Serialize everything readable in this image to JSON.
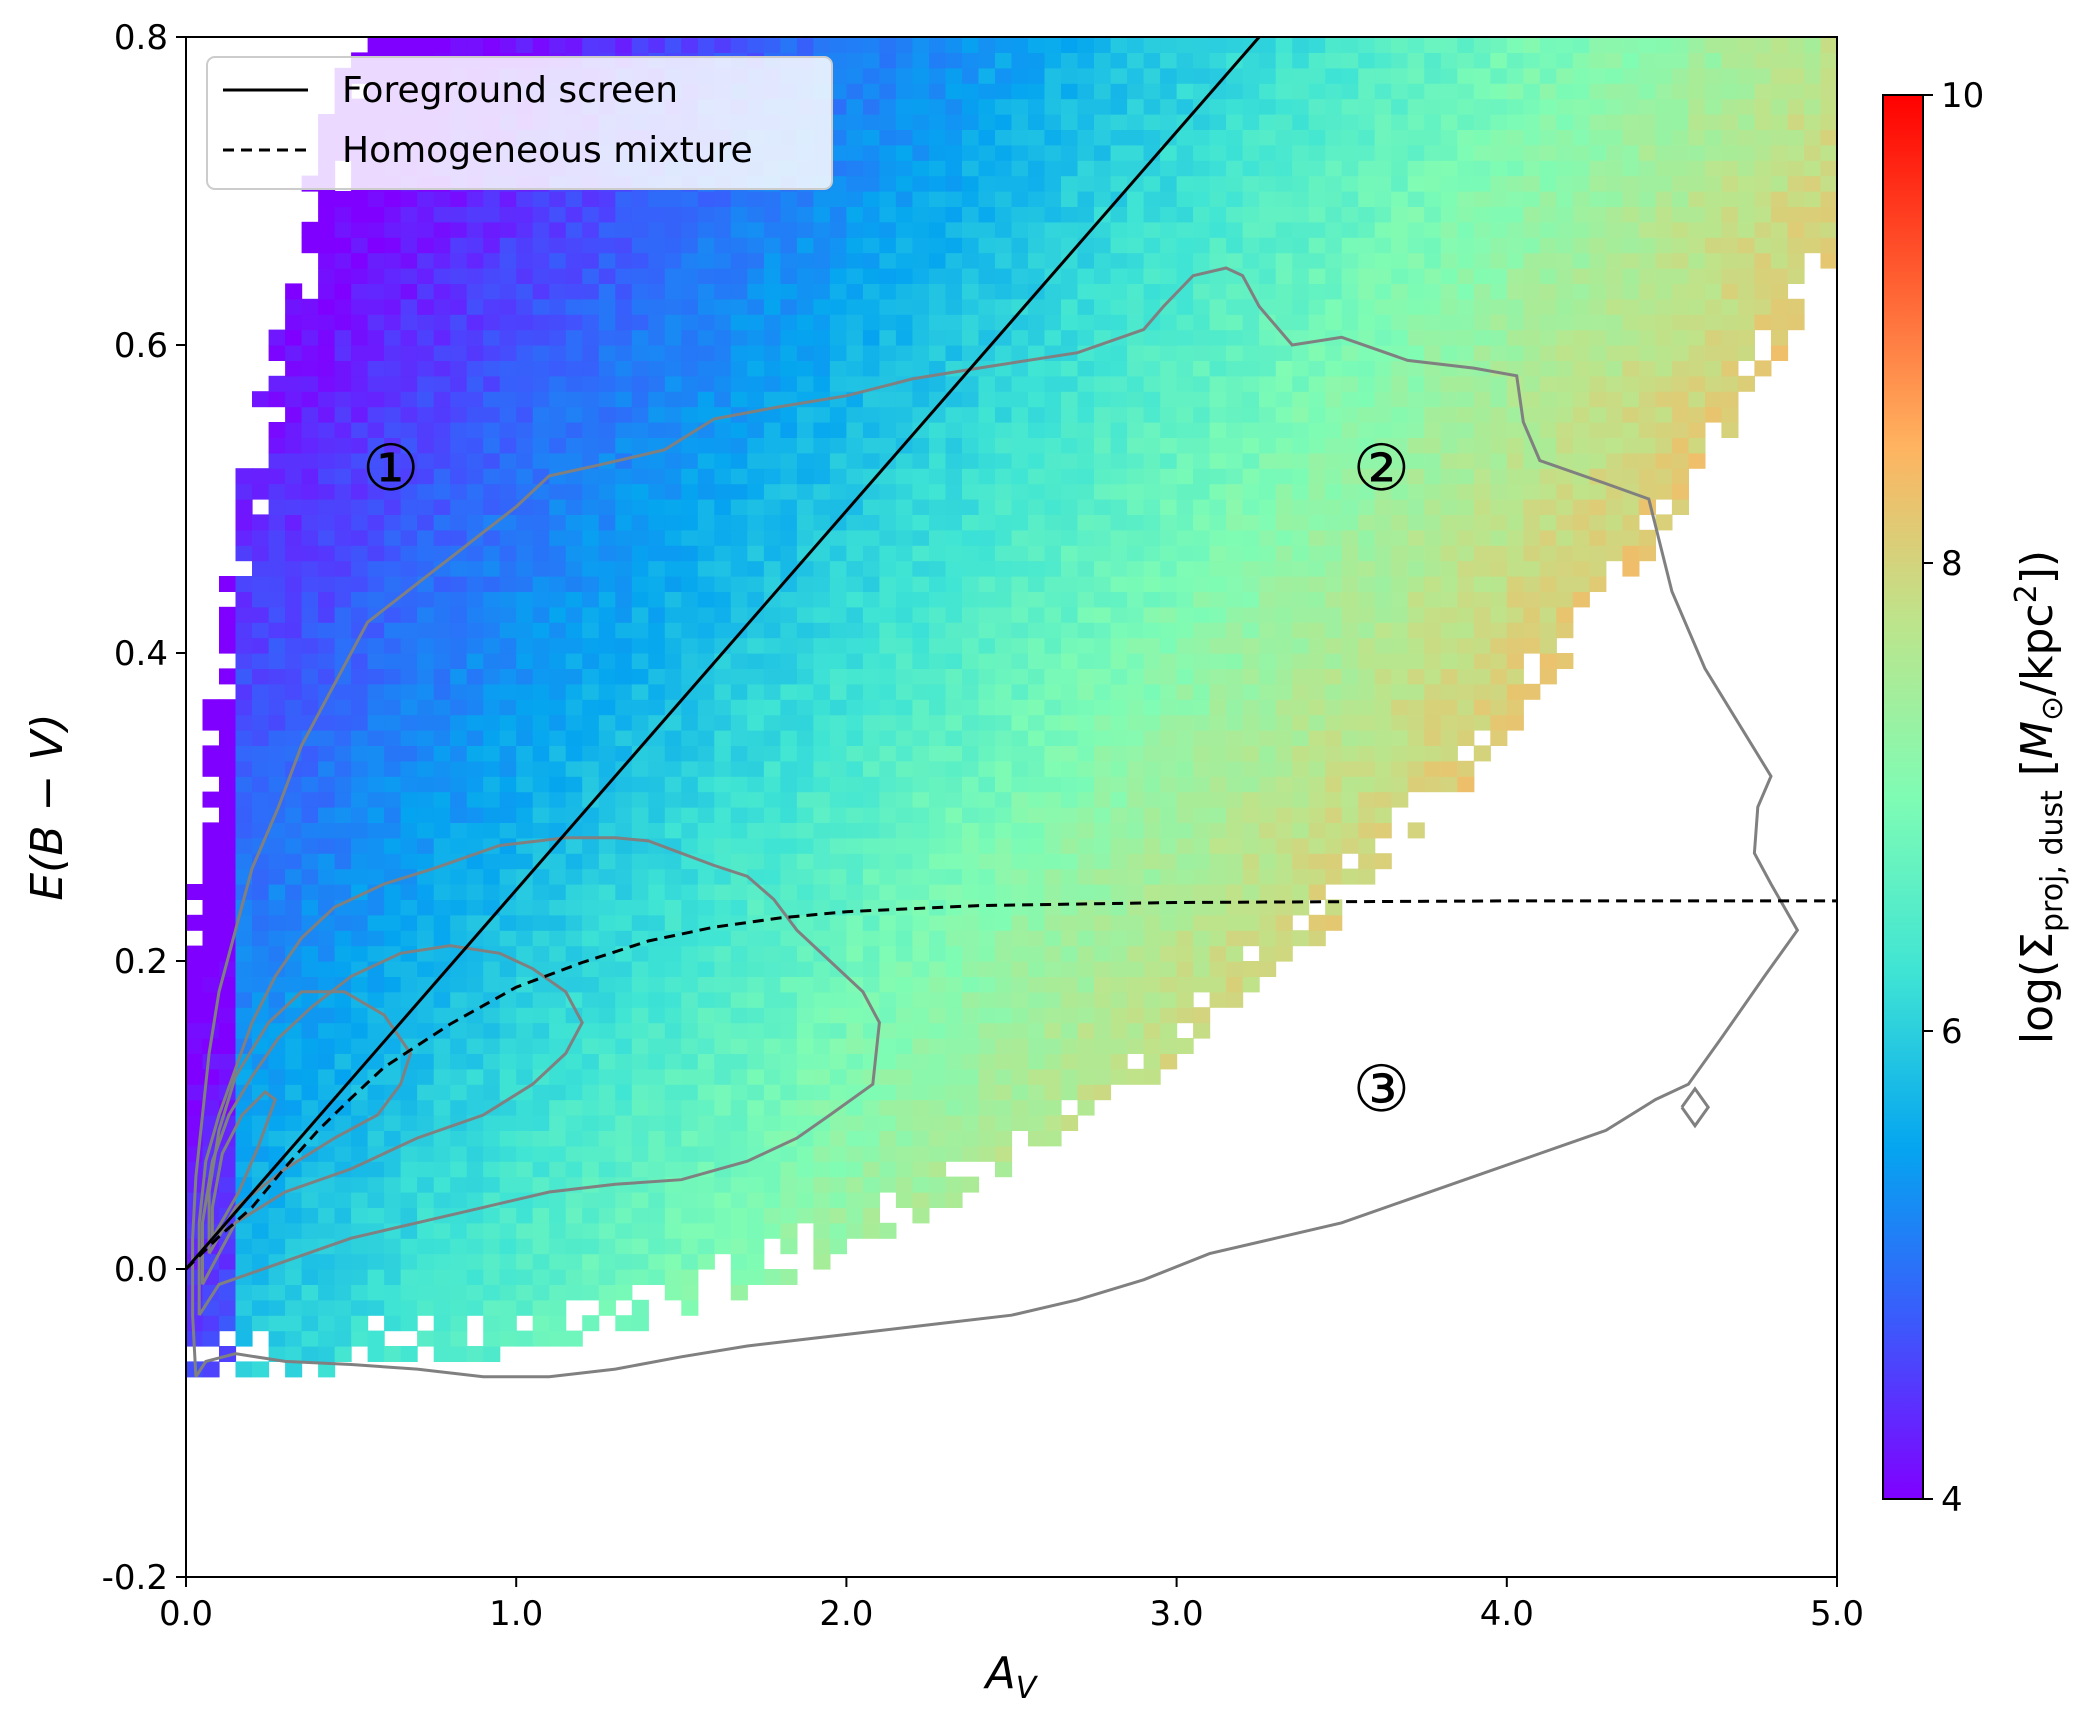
{
  "chart_data": {
    "type": "heatmap",
    "title": "",
    "xlabel": "A_V",
    "ylabel": "E(B − V)",
    "xlim": [
      0.0,
      5.0
    ],
    "ylim": [
      -0.2,
      0.8
    ],
    "x_ticks": [
      {
        "value": 0.0,
        "label": "0.0"
      },
      {
        "value": 1.0,
        "label": "1.0"
      },
      {
        "value": 2.0,
        "label": "2.0"
      },
      {
        "value": 3.0,
        "label": "3.0"
      },
      {
        "value": 4.0,
        "label": "4.0"
      },
      {
        "value": 5.0,
        "label": "5.0"
      }
    ],
    "y_ticks": [
      {
        "value": -0.2,
        "label": "-0.2"
      },
      {
        "value": 0.0,
        "label": "0.0"
      },
      {
        "value": 0.2,
        "label": "0.2"
      },
      {
        "value": 0.4,
        "label": "0.4"
      },
      {
        "value": 0.6,
        "label": "0.6"
      },
      {
        "value": 0.8,
        "label": "0.8"
      }
    ],
    "colorbar": {
      "label": "log(Σproj, dust [M⊙/kpc²])",
      "range": [
        4,
        10
      ],
      "ticks": [
        {
          "value": 4,
          "label": "4"
        },
        {
          "value": 6,
          "label": "6"
        },
        {
          "value": 8,
          "label": "8"
        },
        {
          "value": 10,
          "label": "10"
        }
      ],
      "colormap": "rainbow",
      "colormap_stops": [
        "#8000ff",
        "#3c59fc",
        "#05a5f0",
        "#3fe4d4",
        "#7ffcb4",
        "#bde48b",
        "#ffb360",
        "#ff5a2f",
        "#ff0000"
      ]
    },
    "legend": {
      "location": "upper-left",
      "entries": [
        {
          "label": "Foreground screen",
          "style": "solid"
        },
        {
          "label": "Homogeneous mixture",
          "style": "dashed"
        }
      ]
    },
    "series": [
      {
        "name": "Foreground screen",
        "style": "solid",
        "color": "#000000",
        "x": [
          0.0,
          3.25
        ],
        "y": [
          0.0,
          0.8
        ]
      },
      {
        "name": "Homogeneous mixture",
        "style": "dashed",
        "color": "#000000",
        "x": [
          0.0,
          0.1,
          0.2,
          0.3,
          0.4,
          0.5,
          0.6,
          0.8,
          1.0,
          1.2,
          1.4,
          1.6,
          1.8,
          2.0,
          2.4,
          3.0,
          4.0,
          5.0
        ],
        "y": [
          0.0,
          0.021,
          0.04,
          0.066,
          0.09,
          0.111,
          0.131,
          0.159,
          0.183,
          0.199,
          0.213,
          0.222,
          0.228,
          0.232,
          0.236,
          0.238,
          0.239,
          0.239
        ]
      }
    ],
    "contour_color": "#808080",
    "contours": [
      {
        "level": "outer",
        "points": [
          [
            0.03,
            -0.07
          ],
          [
            0.06,
            -0.06
          ],
          [
            0.15,
            -0.055
          ],
          [
            0.3,
            -0.06
          ],
          [
            0.5,
            -0.062
          ],
          [
            0.7,
            -0.065
          ],
          [
            0.9,
            -0.07
          ],
          [
            1.1,
            -0.07
          ],
          [
            1.3,
            -0.065
          ],
          [
            1.5,
            -0.057
          ],
          [
            1.7,
            -0.05
          ],
          [
            1.9,
            -0.045
          ],
          [
            2.1,
            -0.04
          ],
          [
            2.3,
            -0.035
          ],
          [
            2.5,
            -0.03
          ],
          [
            2.7,
            -0.02
          ],
          [
            2.9,
            -0.007
          ],
          [
            3.1,
            0.01
          ],
          [
            3.3,
            0.02
          ],
          [
            3.5,
            0.03
          ],
          [
            3.7,
            0.045
          ],
          [
            3.9,
            0.06
          ],
          [
            4.1,
            0.075
          ],
          [
            4.3,
            0.09
          ],
          [
            4.45,
            0.11
          ],
          [
            4.55,
            0.12
          ],
          [
            4.65,
            0.15
          ],
          [
            4.78,
            0.19
          ],
          [
            4.88,
            0.22
          ],
          [
            4.8,
            0.25
          ],
          [
            4.75,
            0.27
          ],
          [
            4.76,
            0.3
          ],
          [
            4.8,
            0.32
          ],
          [
            4.6,
            0.39
          ],
          [
            4.5,
            0.44
          ],
          [
            4.43,
            0.5
          ],
          [
            4.3,
            0.51
          ],
          [
            4.1,
            0.525
          ],
          [
            4.05,
            0.55
          ],
          [
            4.03,
            0.58
          ],
          [
            3.9,
            0.585
          ],
          [
            3.7,
            0.59
          ],
          [
            3.5,
            0.605
          ],
          [
            3.35,
            0.6
          ],
          [
            3.25,
            0.625
          ],
          [
            3.2,
            0.645
          ],
          [
            3.15,
            0.65
          ],
          [
            3.05,
            0.645
          ],
          [
            2.96,
            0.625
          ],
          [
            2.9,
            0.61
          ],
          [
            2.7,
            0.595
          ],
          [
            2.4,
            0.585
          ],
          [
            2.2,
            0.578
          ],
          [
            2.0,
            0.567
          ],
          [
            1.8,
            0.56
          ],
          [
            1.6,
            0.552
          ],
          [
            1.45,
            0.532
          ],
          [
            1.25,
            0.522
          ],
          [
            1.1,
            0.515
          ],
          [
            1.0,
            0.495
          ],
          [
            0.85,
            0.47
          ],
          [
            0.7,
            0.445
          ],
          [
            0.55,
            0.42
          ],
          [
            0.45,
            0.38
          ],
          [
            0.35,
            0.34
          ],
          [
            0.28,
            0.3
          ],
          [
            0.2,
            0.26
          ],
          [
            0.15,
            0.22
          ],
          [
            0.1,
            0.18
          ],
          [
            0.07,
            0.14
          ],
          [
            0.05,
            0.1
          ],
          [
            0.03,
            0.06
          ],
          [
            0.02,
            0.02
          ],
          [
            0.02,
            -0.03
          ],
          [
            0.03,
            -0.07
          ]
        ]
      },
      {
        "level": "middle",
        "points": [
          [
            0.04,
            -0.03
          ],
          [
            0.1,
            -0.01
          ],
          [
            0.3,
            0.005
          ],
          [
            0.5,
            0.02
          ],
          [
            0.7,
            0.03
          ],
          [
            0.9,
            0.04
          ],
          [
            1.1,
            0.05
          ],
          [
            1.3,
            0.055
          ],
          [
            1.5,
            0.058
          ],
          [
            1.7,
            0.07
          ],
          [
            1.85,
            0.085
          ],
          [
            1.95,
            0.1
          ],
          [
            2.08,
            0.12
          ],
          [
            2.1,
            0.16
          ],
          [
            2.05,
            0.18
          ],
          [
            1.95,
            0.2
          ],
          [
            1.85,
            0.22
          ],
          [
            1.78,
            0.24
          ],
          [
            1.7,
            0.255
          ],
          [
            1.6,
            0.262
          ],
          [
            1.5,
            0.27
          ],
          [
            1.4,
            0.278
          ],
          [
            1.3,
            0.28
          ],
          [
            1.15,
            0.28
          ],
          [
            0.95,
            0.275
          ],
          [
            0.75,
            0.26
          ],
          [
            0.6,
            0.25
          ],
          [
            0.45,
            0.235
          ],
          [
            0.35,
            0.215
          ],
          [
            0.27,
            0.19
          ],
          [
            0.2,
            0.16
          ],
          [
            0.15,
            0.13
          ],
          [
            0.1,
            0.1
          ],
          [
            0.06,
            0.07
          ],
          [
            0.04,
            0.03
          ],
          [
            0.04,
            -0.03
          ]
        ]
      },
      {
        "level": "inner",
        "points": [
          [
            0.05,
            -0.01
          ],
          [
            0.15,
            0.03
          ],
          [
            0.3,
            0.05
          ],
          [
            0.5,
            0.065
          ],
          [
            0.7,
            0.085
          ],
          [
            0.9,
            0.1
          ],
          [
            1.05,
            0.12
          ],
          [
            1.15,
            0.14
          ],
          [
            1.2,
            0.16
          ],
          [
            1.15,
            0.18
          ],
          [
            1.05,
            0.195
          ],
          [
            0.95,
            0.205
          ],
          [
            0.8,
            0.21
          ],
          [
            0.65,
            0.205
          ],
          [
            0.5,
            0.19
          ],
          [
            0.38,
            0.17
          ],
          [
            0.28,
            0.15
          ],
          [
            0.2,
            0.125
          ],
          [
            0.13,
            0.1
          ],
          [
            0.08,
            0.07
          ],
          [
            0.05,
            0.03
          ],
          [
            0.05,
            -0.01
          ]
        ]
      },
      {
        "level": "innermost",
        "points": [
          [
            0.07,
            0.01
          ],
          [
            0.15,
            0.04
          ],
          [
            0.3,
            0.065
          ],
          [
            0.45,
            0.085
          ],
          [
            0.58,
            0.1
          ],
          [
            0.65,
            0.12
          ],
          [
            0.68,
            0.14
          ],
          [
            0.6,
            0.165
          ],
          [
            0.48,
            0.18
          ],
          [
            0.35,
            0.18
          ],
          [
            0.25,
            0.16
          ],
          [
            0.15,
            0.125
          ],
          [
            0.1,
            0.09
          ],
          [
            0.07,
            0.05
          ],
          [
            0.07,
            0.01
          ]
        ]
      },
      {
        "level": "core",
        "points": [
          [
            0.08,
            0.02
          ],
          [
            0.16,
            0.05
          ],
          [
            0.22,
            0.08
          ],
          [
            0.27,
            0.11
          ],
          [
            0.24,
            0.115
          ],
          [
            0.17,
            0.1
          ],
          [
            0.11,
            0.075
          ],
          [
            0.08,
            0.04
          ],
          [
            0.08,
            0.02
          ]
        ]
      },
      {
        "level": "isolated",
        "points": [
          [
            4.53,
            0.105
          ],
          [
            4.57,
            0.117
          ],
          [
            4.61,
            0.105
          ],
          [
            4.57,
            0.093
          ],
          [
            4.53,
            0.105
          ]
        ]
      }
    ],
    "annotations": [
      {
        "label": "①",
        "x": 0.62,
        "y": 0.52
      },
      {
        "label": "②",
        "x": 3.62,
        "y": 0.52
      },
      {
        "label": "③",
        "x": 3.62,
        "y": 0.117
      }
    ]
  }
}
